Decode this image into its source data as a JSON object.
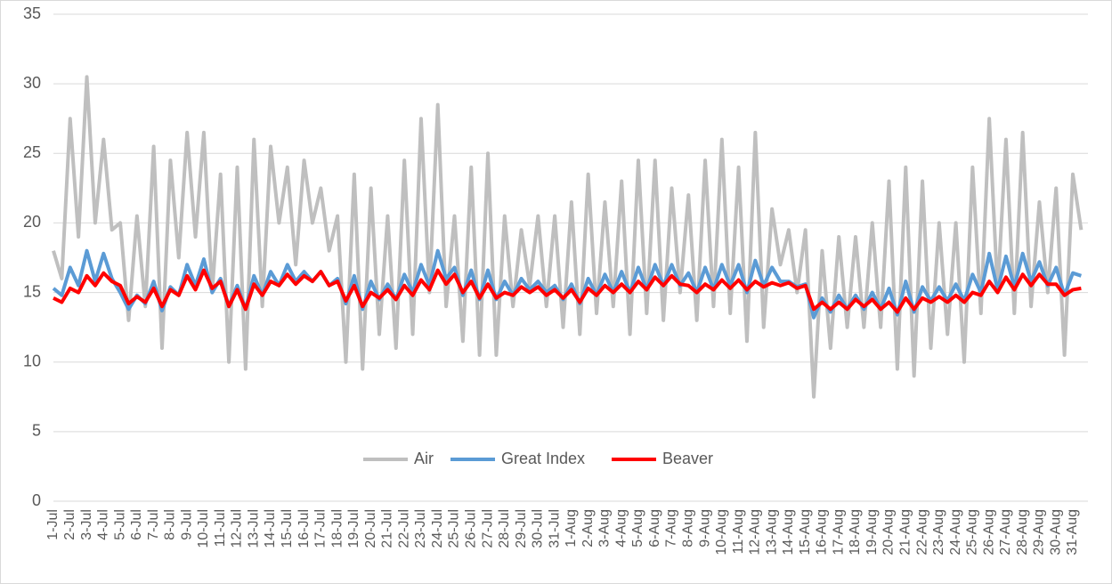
{
  "chart_data": {
    "type": "line",
    "categories": [
      "1-Jul",
      null,
      "2-Jul",
      null,
      "3-Jul",
      null,
      "4-Jul",
      null,
      "5-Jul",
      null,
      "6-Jul",
      null,
      "7-Jul",
      null,
      "8-Jul",
      null,
      "9-Jul",
      null,
      "10-Jul",
      null,
      "11-Jul",
      null,
      "12-Jul",
      null,
      "13-Jul",
      null,
      "14-Jul",
      null,
      "15-Jul",
      null,
      "16-Jul",
      null,
      "17-Jul",
      null,
      "18-Jul",
      null,
      "19-Jul",
      null,
      "20-Jul",
      null,
      "21-Jul",
      null,
      "22-Jul",
      null,
      "23-Jul",
      null,
      "24-Jul",
      null,
      "25-Jul",
      null,
      "26-Jul",
      null,
      "27-Jul",
      null,
      "28-Jul",
      null,
      "29-Jul",
      null,
      "30-Jul",
      null,
      "31-Jul",
      null,
      "1-Aug",
      null,
      "2-Aug",
      null,
      "3-Aug",
      null,
      "4-Aug",
      null,
      "5-Aug",
      null,
      "6-Aug",
      null,
      "7-Aug",
      null,
      "8-Aug",
      null,
      "9-Aug",
      null,
      "10-Aug",
      null,
      "11-Aug",
      null,
      "12-Aug",
      null,
      "13-Aug",
      null,
      "14-Aug",
      null,
      "15-Aug",
      null,
      "16-Aug",
      null,
      "17-Aug",
      null,
      "18-Aug",
      null,
      "19-Aug",
      null,
      "20-Aug",
      null,
      "21-Aug",
      null,
      "22-Aug",
      null,
      "23-Aug",
      null,
      "24-Aug",
      null,
      "25-Aug",
      null,
      "26-Aug",
      null,
      "27-Aug",
      null,
      "28-Aug",
      null,
      "29-Aug",
      null,
      "30-Aug",
      null,
      "31-Aug",
      null
    ],
    "series": [
      {
        "name": "Air",
        "color": "#bfbfbf",
        "values": [
          18,
          16,
          27.5,
          19,
          30.5,
          20,
          26,
          19.5,
          20,
          13,
          20.5,
          14,
          25.5,
          11,
          24.5,
          17.5,
          26.5,
          19,
          26.5,
          15,
          23.5,
          10,
          24,
          9.5,
          26,
          14,
          25.5,
          20,
          24,
          17,
          24.5,
          20,
          22.5,
          18,
          20.5,
          10,
          23.5,
          9.5,
          22.5,
          12,
          20.5,
          11,
          24.5,
          12,
          27.5,
          15,
          28.5,
          14,
          20.5,
          11.5,
          24,
          10.5,
          25,
          10.5,
          20.5,
          14,
          19.5,
          15.5,
          20.5,
          14,
          20.5,
          12.5,
          21.5,
          12,
          23.5,
          13.5,
          21.5,
          14,
          23,
          12,
          24.5,
          13.5,
          24.5,
          13,
          22.5,
          15,
          22,
          13,
          24.5,
          14,
          26,
          13.5,
          24,
          11.5,
          26.5,
          12.5,
          21,
          17,
          19.5,
          15,
          19.5,
          7.5,
          18,
          11,
          19,
          12.5,
          19,
          12.5,
          20,
          12.5,
          23,
          9.5,
          24,
          9,
          23,
          11,
          20,
          12,
          20,
          10,
          24,
          13.5,
          27.5,
          15,
          26,
          13.5,
          26.5,
          14,
          21.5,
          15,
          22.5,
          10.5,
          23.5,
          19.5
        ]
      },
      {
        "name": "Great Index",
        "color": "#5b9bd5",
        "values": [
          15.3,
          14.8,
          16.8,
          15.5,
          18,
          15.8,
          17.8,
          16,
          15,
          13.8,
          14.8,
          14.2,
          15.8,
          13.7,
          15.4,
          14.8,
          17,
          15.5,
          17.4,
          15,
          16,
          14,
          15.5,
          13.8,
          16.2,
          14.8,
          16.5,
          15.5,
          17,
          15.8,
          16.5,
          15.8,
          16.5,
          15.5,
          16,
          14.2,
          16.2,
          13.8,
          15.8,
          14.5,
          15.6,
          14.5,
          16.3,
          15,
          17,
          15.5,
          18,
          16,
          16.8,
          14.8,
          16.6,
          14.5,
          16.6,
          14.5,
          15.8,
          14.8,
          16,
          15.2,
          15.8,
          15,
          15.5,
          14.5,
          15.6,
          14.2,
          16,
          14.8,
          16.3,
          15,
          16.5,
          15,
          16.8,
          15.2,
          17,
          15.5,
          17,
          15.5,
          16.4,
          15,
          16.8,
          15.2,
          17,
          15.5,
          17,
          15,
          17.3,
          15.5,
          16.8,
          15.8,
          15.8,
          15.4,
          15.6,
          13.2,
          14.6,
          13.6,
          14.8,
          13.8,
          14.8,
          13.8,
          15,
          13.8,
          15.3,
          13.4,
          15.8,
          13.6,
          15.4,
          14.4,
          15.4,
          14.4,
          15.6,
          14.4,
          16.3,
          15,
          17.8,
          15.2,
          17.6,
          15.4,
          17.8,
          15.8,
          17.2,
          15.5,
          16.8,
          14.8,
          16.4,
          16.2
        ]
      },
      {
        "name": "Beaver",
        "color": "#ff0000",
        "values": [
          14.6,
          14.3,
          15.3,
          15,
          16.2,
          15.5,
          16.4,
          15.8,
          15.5,
          14.2,
          14.7,
          14.3,
          15.3,
          14,
          15.2,
          14.8,
          16.2,
          15.2,
          16.6,
          15.3,
          15.8,
          14,
          15.2,
          13.8,
          15.6,
          14.8,
          15.8,
          15.5,
          16.3,
          15.6,
          16.2,
          15.8,
          16.5,
          15.5,
          15.8,
          14.4,
          15.5,
          14,
          15,
          14.6,
          15.2,
          14.5,
          15.5,
          14.8,
          15.9,
          15.2,
          16.6,
          15.6,
          16.3,
          15,
          15.8,
          14.6,
          15.6,
          14.6,
          15,
          14.8,
          15.4,
          15,
          15.4,
          14.8,
          15.2,
          14.6,
          15.2,
          14.3,
          15.3,
          14.8,
          15.5,
          15,
          15.6,
          15,
          15.8,
          15.2,
          16.1,
          15.5,
          16.2,
          15.6,
          15.5,
          15,
          15.6,
          15.2,
          15.9,
          15.3,
          15.9,
          15.2,
          15.8,
          15.4,
          15.7,
          15.5,
          15.7,
          15.3,
          15.5,
          13.8,
          14.3,
          13.8,
          14.3,
          13.8,
          14.5,
          14,
          14.5,
          13.8,
          14.3,
          13.6,
          14.6,
          13.8,
          14.6,
          14.3,
          14.7,
          14.3,
          14.8,
          14.3,
          15,
          14.8,
          15.8,
          15,
          16.1,
          15.2,
          16.3,
          15.5,
          16.3,
          15.6,
          15.6,
          14.8,
          15.2,
          15.3
        ]
      }
    ],
    "ylim": [
      0,
      35
    ],
    "yticks": [
      0,
      5,
      10,
      15,
      20,
      25,
      30,
      35
    ],
    "grid": true,
    "legend": "bottom"
  }
}
